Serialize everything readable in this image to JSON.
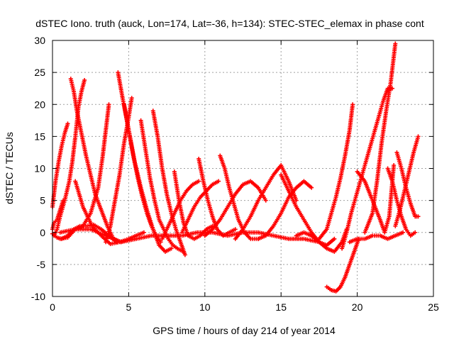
{
  "chart_data": {
    "type": "scatter",
    "title": "dSTEC Iono. truth (auck, Lon=174, Lat=-36, h=134): STEC-STEC_elemax in phase cont",
    "xlabel": "GPS time / hours of day 214 of year 2014",
    "ylabel": "dSTEC  / TECUs",
    "xlim": [
      0,
      25
    ],
    "ylim": [
      -10,
      30
    ],
    "xticks": [
      0,
      5,
      10,
      15,
      20,
      25
    ],
    "yticks": [
      -10,
      -5,
      0,
      5,
      10,
      15,
      20,
      25,
      30
    ],
    "grid": true,
    "marker": "plus",
    "color": "#ff0000",
    "series": [
      {
        "x": [
          0.0,
          0.2,
          0.4,
          0.6,
          0.8,
          1.0
        ],
        "y": [
          4.0,
          8.0,
          11.0,
          13.5,
          15.5,
          17.0
        ]
      },
      {
        "x": [
          0.0,
          0.1,
          0.3,
          0.5,
          0.7
        ],
        "y": [
          0.5,
          1.5,
          2.0,
          3.5,
          5.0
        ]
      },
      {
        "x": [
          0.1,
          0.3,
          0.5,
          0.8,
          1.1,
          1.3,
          1.5,
          1.7,
          1.9,
          2.1
        ],
        "y": [
          -0.5,
          0.5,
          2.5,
          5.0,
          8.0,
          11.0,
          15.0,
          19.5,
          22.0,
          23.8
        ]
      },
      {
        "x": [
          1.2,
          1.4,
          1.6,
          1.9,
          2.2,
          2.5,
          2.8,
          3.2,
          3.6,
          4.0,
          4.5
        ],
        "y": [
          24.0,
          22.0,
          19.0,
          15.5,
          12.0,
          9.0,
          6.0,
          3.5,
          1.0,
          -1.0,
          -1.5
        ]
      },
      {
        "x": [
          0.5,
          1.0,
          1.5,
          2.0,
          2.5,
          3.0,
          3.3,
          3.5,
          3.7
        ],
        "y": [
          -1.0,
          -0.8,
          0.5,
          1.0,
          3.0,
          7.0,
          12.0,
          16.0,
          20.0
        ]
      },
      {
        "x": [
          0.0,
          0.3,
          0.6,
          1.0,
          1.4,
          1.8,
          2.2,
          2.7,
          3.2,
          3.7,
          4.2
        ],
        "y": [
          -0.2,
          -0.8,
          -1.0,
          -0.5,
          0.5,
          1.0,
          1.0,
          1.2,
          0.5,
          -0.5,
          -1.5
        ]
      },
      {
        "x": [
          1.5,
          2.0,
          2.6,
          3.2,
          3.8,
          4.4,
          5.0,
          5.5,
          6.0
        ],
        "y": [
          8.0,
          4.0,
          1.0,
          -0.5,
          -1.8,
          -1.5,
          -1.0,
          -0.5,
          0.0
        ]
      },
      {
        "x": [
          4.3,
          4.6,
          5.0,
          5.4,
          5.8,
          6.2,
          6.6,
          7.0,
          7.4,
          7.8
        ],
        "y": [
          25.0,
          21.0,
          16.0,
          11.0,
          7.0,
          3.5,
          0.5,
          -2.0,
          -3.0,
          -2.5
        ]
      },
      {
        "x": [
          3.5,
          3.8,
          4.1,
          4.4,
          4.7,
          5.0,
          5.2
        ],
        "y": [
          -1.5,
          1.0,
          5.0,
          9.0,
          14.0,
          18.0,
          21.0
        ]
      },
      {
        "x": [
          4.7,
          5.0,
          5.3,
          5.6,
          5.9,
          6.2,
          6.5,
          6.8,
          7.1
        ],
        "y": [
          20.0,
          16.0,
          12.0,
          8.5,
          5.5,
          3.0,
          1.0,
          -0.5,
          -1.5
        ]
      },
      {
        "x": [
          5.8,
          6.1,
          6.4,
          6.7,
          7.0,
          7.3,
          7.6,
          7.9,
          8.2,
          8.6
        ],
        "y": [
          17.5,
          13.0,
          8.5,
          5.0,
          2.0,
          0.5,
          -1.0,
          -2.0,
          -2.5,
          -3.0
        ]
      },
      {
        "x": [
          6.6,
          6.9,
          7.2,
          7.5,
          7.8,
          8.1,
          8.4,
          8.7
        ],
        "y": [
          19.0,
          15.0,
          10.0,
          6.0,
          3.0,
          0.5,
          -1.5,
          -3.5
        ]
      },
      {
        "x": [
          8.0,
          8.3,
          8.6,
          8.9,
          9.3,
          9.7,
          10.1,
          10.5
        ],
        "y": [
          9.5,
          5.0,
          1.5,
          -0.5,
          -1.0,
          -0.5,
          0.5,
          1.0
        ]
      },
      {
        "x": [
          7.2,
          7.6,
          8.0,
          8.4,
          8.8,
          9.2,
          9.6
        ],
        "y": [
          -1.0,
          1.0,
          3.0,
          5.0,
          6.5,
          7.5,
          8.0
        ]
      },
      {
        "x": [
          9.6,
          9.9,
          10.2,
          10.5,
          10.8,
          11.2,
          11.6,
          12.0
        ],
        "y": [
          11.5,
          8.0,
          5.0,
          2.5,
          0.5,
          -0.5,
          0.0,
          0.5
        ]
      },
      {
        "x": [
          8.5,
          8.9,
          9.3,
          9.7,
          10.1,
          10.5,
          10.9
        ],
        "y": [
          0.0,
          2.0,
          4.0,
          5.5,
          6.5,
          7.5,
          8.0
        ]
      },
      {
        "x": [
          11.0,
          11.3,
          11.6,
          11.9,
          12.2,
          12.6,
          13.0,
          13.5
        ],
        "y": [
          12.0,
          10.0,
          7.0,
          4.5,
          2.0,
          0.0,
          -1.0,
          -1.0
        ]
      },
      {
        "x": [
          10.0,
          10.5,
          11.0,
          11.5,
          12.0,
          12.5,
          13.0,
          13.5,
          14.0
        ],
        "y": [
          -0.5,
          0.5,
          2.0,
          4.0,
          6.0,
          7.5,
          8.0,
          7.0,
          5.0
        ]
      },
      {
        "x": [
          12.0,
          12.5,
          13.0,
          13.5,
          14.0,
          14.5,
          15.0,
          15.5,
          16.0
        ],
        "y": [
          -1.0,
          0.5,
          2.5,
          5.0,
          7.0,
          9.0,
          10.5,
          8.0,
          5.0
        ]
      },
      {
        "x": [
          13.5,
          14.0,
          14.5,
          15.0,
          15.5,
          16.0,
          16.5,
          17.0
        ],
        "y": [
          -1.0,
          -0.5,
          1.0,
          3.0,
          5.5,
          7.0,
          8.0,
          7.0
        ]
      },
      {
        "x": [
          15.0,
          15.5,
          16.0,
          16.5,
          17.0,
          17.5,
          18.0,
          18.5
        ],
        "y": [
          9.0,
          6.5,
          4.0,
          2.0,
          0.0,
          -1.5,
          -2.0,
          -1.0
        ]
      },
      {
        "x": [
          16.0,
          16.5,
          17.0,
          17.5,
          18.0,
          18.5,
          19.0,
          19.3
        ],
        "y": [
          -0.5,
          0.0,
          -0.5,
          -1.5,
          -2.5,
          -3.0,
          -1.5,
          0.5
        ]
      },
      {
        "x": [
          17.5,
          18.0,
          18.3,
          18.6,
          18.9,
          19.2,
          19.5,
          19.7
        ],
        "y": [
          -1.0,
          0.5,
          3.0,
          5.5,
          8.5,
          12.0,
          16.0,
          20.0
        ]
      },
      {
        "x": [
          18.0,
          18.3,
          18.6,
          18.9,
          19.2,
          19.5,
          19.8,
          20.1
        ],
        "y": [
          -8.5,
          -9.0,
          -9.2,
          -8.5,
          -7.0,
          -5.0,
          -3.0,
          -1.0
        ]
      },
      {
        "x": [
          19.0,
          19.3,
          19.6,
          19.9,
          20.2,
          20.5,
          20.8,
          21.1,
          21.4,
          21.7,
          22.0,
          22.3
        ],
        "y": [
          -2.5,
          0.0,
          3.0,
          5.5,
          8.0,
          10.5,
          13.0,
          15.5,
          18.0,
          20.5,
          22.5,
          22.5
        ]
      },
      {
        "x": [
          19.5,
          20.0,
          20.5,
          21.0,
          21.5,
          22.0,
          22.5,
          23.0
        ],
        "y": [
          -1.5,
          -1.0,
          -1.0,
          -0.5,
          -0.5,
          -1.0,
          -0.5,
          0.0
        ]
      },
      {
        "x": [
          20.0,
          20.5,
          21.0,
          21.5,
          21.8,
          22.1,
          22.4
        ],
        "y": [
          9.5,
          8.0,
          5.0,
          2.0,
          0.0,
          2.5,
          10.5
        ]
      },
      {
        "x": [
          20.5,
          21.0,
          21.3,
          21.6,
          21.9,
          22.2,
          22.5
        ],
        "y": [
          0.0,
          3.0,
          8.0,
          14.0,
          19.0,
          23.5,
          29.5
        ]
      },
      {
        "x": [
          22.0,
          22.3,
          22.6,
          22.9,
          23.2,
          23.5,
          23.8
        ],
        "y": [
          10.0,
          8.0,
          5.0,
          2.5,
          0.5,
          -0.5,
          0.0
        ]
      },
      {
        "x": [
          22.6,
          22.9,
          23.2,
          23.5,
          23.8,
          24.0
        ],
        "y": [
          12.5,
          10.0,
          7.0,
          4.5,
          2.5,
          2.5
        ]
      },
      {
        "x": [
          22.5,
          22.8,
          23.1,
          23.4,
          23.7,
          24.0
        ],
        "y": [
          1.0,
          3.5,
          6.5,
          9.5,
          12.5,
          15.0
        ]
      },
      {
        "x": [
          0.5,
          1.5,
          2.5,
          3.5,
          4.5,
          5.5,
          6.5,
          7.5,
          8.5,
          9.5,
          10.5,
          11.5,
          12.5,
          13.5,
          14.5,
          15.5,
          16.5,
          17.5
        ],
        "y": [
          0.0,
          0.5,
          0.5,
          -0.5,
          -1.5,
          -1.0,
          -0.5,
          -0.5,
          -0.5,
          0.0,
          0.0,
          -0.5,
          0.0,
          0.0,
          -0.5,
          -1.0,
          -1.0,
          -1.5
        ]
      }
    ]
  }
}
